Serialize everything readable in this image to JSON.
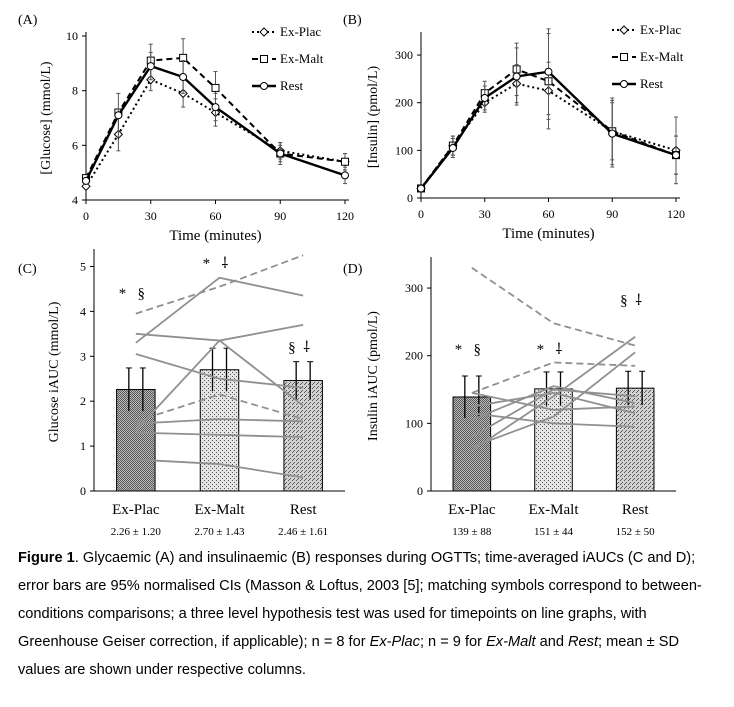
{
  "chart_data": [
    {
      "panel": "(A)",
      "type": "line",
      "ylabel": "[Glucose] (mmol/L)",
      "xlabel": "Time (minutes)",
      "x": [
        0,
        15,
        30,
        45,
        60,
        90,
        120
      ],
      "xticks": [
        0,
        30,
        60,
        90,
        120
      ],
      "yticks": [
        4,
        6,
        8,
        10
      ],
      "xlim": [
        0,
        120
      ],
      "ylim": [
        4,
        10
      ],
      "legend": "top-right",
      "series": [
        {
          "name": "Ex-Plac",
          "values": [
            4.5,
            6.4,
            8.4,
            7.9,
            7.2,
            5.8,
            5.4
          ],
          "err": [
            0,
            0.6,
            0.4,
            0.5,
            0.5,
            0.3,
            0.3
          ],
          "style": "dotted",
          "marker": "diamond"
        },
        {
          "name": "Ex-Malt",
          "values": [
            4.8,
            7.2,
            9.1,
            9.2,
            8.1,
            5.7,
            5.4
          ],
          "err": [
            0,
            0,
            0.6,
            0.7,
            0.6,
            0.4,
            0.3
          ],
          "style": "dashed",
          "marker": "square"
        },
        {
          "name": "Rest",
          "values": [
            4.7,
            7.1,
            8.9,
            8.5,
            7.4,
            5.7,
            4.9
          ],
          "err": [
            0,
            0.8,
            0.5,
            0.6,
            0.5,
            0.3,
            0.3
          ],
          "style": "solid",
          "marker": "circle"
        }
      ]
    },
    {
      "panel": "(B)",
      "type": "line",
      "ylabel": "[Insulin] (pmol/L)",
      "xlabel": "Time (minutes)",
      "x": [
        0,
        15,
        30,
        45,
        60,
        90,
        120
      ],
      "xticks": [
        0,
        30,
        60,
        90,
        120
      ],
      "yticks": [
        0,
        100,
        200,
        300
      ],
      "xlim": [
        0,
        120
      ],
      "ylim": [
        0,
        340
      ],
      "legend": "top-right",
      "series": [
        {
          "name": "Ex-Plac",
          "values": [
            20,
            110,
            200,
            240,
            225,
            140,
            100
          ],
          "err": [
            0,
            20,
            20,
            40,
            60,
            60,
            70
          ],
          "style": "dotted",
          "marker": "diamond"
        },
        {
          "name": "Ex-Malt",
          "values": [
            20,
            110,
            220,
            270,
            245,
            140,
            90
          ],
          "err": [
            0,
            20,
            25,
            55,
            100,
            70,
            40
          ],
          "style": "dashed",
          "marker": "square"
        },
        {
          "name": "Rest",
          "values": [
            20,
            105,
            210,
            255,
            265,
            135,
            90
          ],
          "err": [
            0,
            20,
            25,
            60,
            90,
            70,
            40
          ],
          "style": "solid",
          "marker": "circle"
        }
      ]
    },
    {
      "panel": "(C)",
      "type": "bar",
      "ylabel": "Glucose iAUC (mmol/L)",
      "categories": [
        "Ex-Plac",
        "Ex-Malt",
        "Rest"
      ],
      "values": [
        2.26,
        2.7,
        2.46
      ],
      "ci": [
        0.48,
        0.48,
        0.42
      ],
      "value_labels": [
        "2.26 ± 1.20",
        "2.70 ± 1.43",
        "2.46 ± 1.61"
      ],
      "yticks": [
        0,
        1,
        2,
        3,
        4,
        5
      ],
      "ylim": [
        0,
        5.3
      ],
      "annotations": [
        {
          "bar": 0,
          "symbols": "*   §"
        },
        {
          "bar": 1,
          "symbols": "*   ⸸"
        },
        {
          "bar": 2,
          "symbols": "§  ⸸"
        }
      ],
      "individuals": [
        {
          "values": [
            0.7,
            0.6,
            0.3
          ],
          "style": "solid"
        },
        {
          "values": [
            1.3,
            1.25,
            1.2
          ],
          "style": "solid"
        },
        {
          "values": [
            1.5,
            1.6,
            1.55
          ],
          "style": "solid"
        },
        {
          "values": [
            1.55,
            2.15,
            1.6
          ],
          "style": "dashed"
        },
        {
          "values": [
            1.35,
            3.35,
            1.9
          ],
          "style": "solid"
        },
        {
          "values": [
            3.05,
            2.5,
            2.3
          ],
          "style": "solid"
        },
        {
          "values": [
            3.5,
            3.35,
            3.7
          ],
          "style": "solid"
        },
        {
          "values": [
            3.3,
            4.75,
            4.35
          ],
          "style": "solid"
        },
        {
          "values": [
            3.95,
            4.55,
            5.25
          ],
          "style": "dashed"
        }
      ]
    },
    {
      "panel": "(D)",
      "type": "bar",
      "ylabel": "Insulin iAUC (pmol/L)",
      "categories": [
        "Ex-Plac",
        "Ex-Malt",
        "Rest"
      ],
      "values": [
        139,
        151,
        152
      ],
      "ci": [
        31,
        25,
        25
      ],
      "value_labels": [
        "139 ± 88",
        "151 ± 44",
        "152 ± 50"
      ],
      "yticks": [
        0,
        100,
        200,
        300
      ],
      "ylim": [
        0,
        340
      ],
      "annotations": [
        {
          "bar": 0,
          "symbols": "*   §"
        },
        {
          "bar": 1,
          "symbols": "*   ⸸"
        },
        {
          "bar": 2,
          "symbols": "§  ⸸"
        }
      ],
      "individuals": [
        {
          "values": [
            330,
            248,
            215
          ],
          "style": "dashed"
        },
        {
          "values": [
            145,
            190,
            185
          ],
          "style": "dashed"
        },
        {
          "values": [
            60,
            140,
            228
          ],
          "style": "solid"
        },
        {
          "values": [
            65,
            110,
            205
          ],
          "style": "solid"
        },
        {
          "values": [
            80,
            150,
            140
          ],
          "style": "solid"
        },
        {
          "values": [
            105,
            155,
            130
          ],
          "style": "solid"
        },
        {
          "values": [
            125,
            145,
            115
          ],
          "style": "solid"
        },
        {
          "values": [
            145,
            120,
            125
          ],
          "style": "solid"
        },
        {
          "values": [
            115,
            100,
            95
          ],
          "style": "solid"
        }
      ]
    }
  ],
  "caption": {
    "figure_label": "Figure 1",
    "text_parts": [
      {
        "t": ". Glycaemic (A) and insulinaemic (B) responses during OGTTs; time-averaged iAUCs (C and D); error bars are 95% normalised CIs (Masson & Loftus, 2003 [5]; matching symbols correspond to between-conditions comparisons; a three level hypothesis test was used for timepoints on line graphs, with Greenhouse Geiser correction, if applicable); n = 8 for ",
        "i": false
      },
      {
        "t": "Ex-Plac",
        "i": true
      },
      {
        "t": "; n = 9 for ",
        "i": false
      },
      {
        "t": "Ex-Malt",
        "i": true
      },
      {
        "t": " and ",
        "i": false
      },
      {
        "t": "Rest",
        "i": true
      },
      {
        "t": "; mean ± SD values are shown under respective columns.",
        "i": false
      }
    ]
  },
  "colors": {
    "axis": "#000000",
    "individual_line": "#909090",
    "bar_edge": "#000000"
  }
}
